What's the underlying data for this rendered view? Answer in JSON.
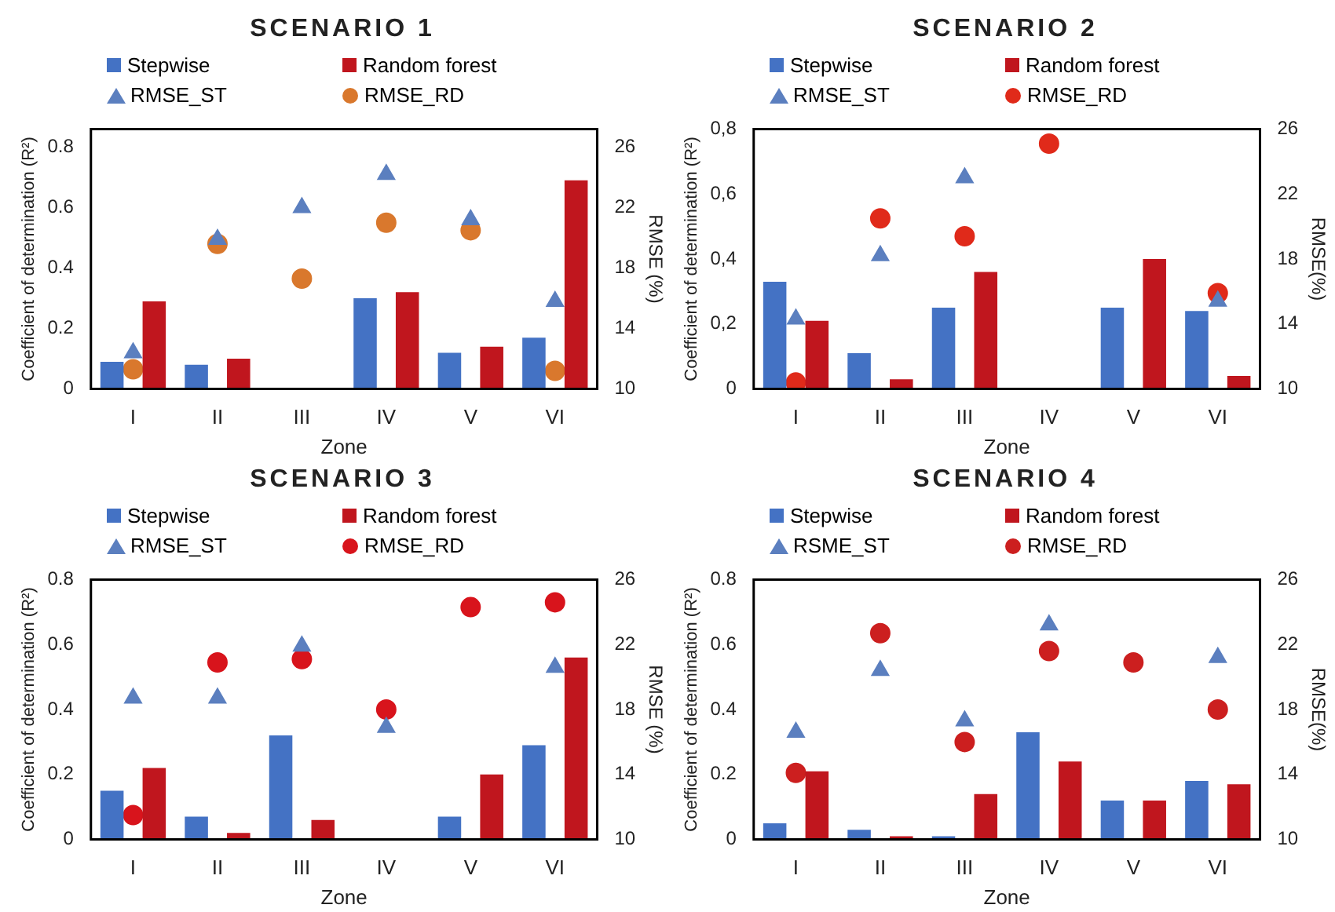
{
  "chart_data": [
    {
      "type": "bar",
      "title": "SCENARIO 1",
      "xlabel": "Zone",
      "ylabel": "Coefficient of determination (R²)",
      "y2label": "RMSE (%)",
      "categories": [
        "I",
        "II",
        "III",
        "IV",
        "V",
        "VI"
      ],
      "legend": "top",
      "grid": false,
      "ylim": [
        0,
        0.86
      ],
      "yticks": [
        0,
        0.2,
        0.4,
        0.6,
        0.8
      ],
      "y2lim": [
        10,
        27.2
      ],
      "y2ticks": [
        10,
        14,
        18,
        22,
        26
      ],
      "series": [
        {
          "name": "Stepwise",
          "type": "bar",
          "color": "#4472c4",
          "values": [
            0.09,
            0.08,
            0,
            0.3,
            0.12,
            0.17
          ]
        },
        {
          "name": "Random forest",
          "type": "bar",
          "color": "#c0161e",
          "values": [
            0.29,
            0.1,
            0,
            0.32,
            0.14,
            0.69
          ]
        },
        {
          "name": "RMSE_ST",
          "type": "scatter",
          "marker": "triangle",
          "axis": "y2",
          "color": "#5b7fbf",
          "values": [
            12.4,
            19.9,
            22,
            24.2,
            21.2,
            15.8
          ]
        },
        {
          "name": "RMSE_RD",
          "type": "scatter",
          "marker": "circle",
          "axis": "y2",
          "color": "#d9782d",
          "values": [
            11.3,
            19.6,
            17.3,
            21,
            20.5,
            11.2
          ]
        }
      ]
    },
    {
      "type": "bar",
      "title": "SCENARIO 2",
      "xlabel": "Zone",
      "ylabel": "Coefficient of determination (R²)",
      "y2label": "RMSE(%)",
      "categories": [
        "I",
        "II",
        "III",
        "IV",
        "V",
        "VI"
      ],
      "legend": "top",
      "grid": false,
      "ylim": [
        0,
        0.8
      ],
      "yticks": [
        0,
        {
          "value": 0.2,
          "label": "0,2"
        },
        {
          "value": 0.4,
          "label": "0,4"
        },
        {
          "value": 0.6,
          "label": "0,6"
        },
        {
          "value": 0.8,
          "label": "0,8"
        }
      ],
      "y2lim": [
        10,
        26
      ],
      "y2ticks": [
        10,
        14,
        18,
        22,
        26
      ],
      "series": [
        {
          "name": "Stepwise",
          "type": "bar",
          "color": "#4472c4",
          "values": [
            0.33,
            0.11,
            0.25,
            0,
            0.25,
            0.24
          ]
        },
        {
          "name": "Random forest",
          "type": "bar",
          "color": "#c0161e",
          "values": [
            0.21,
            0.03,
            0.36,
            0,
            0.4,
            0.04
          ]
        },
        {
          "name": "RMSE_ST",
          "type": "scatter",
          "marker": "triangle",
          "axis": "y2",
          "color": "#5b7fbf",
          "values": [
            14.3,
            18.2,
            23,
            null,
            null,
            15.4
          ]
        },
        {
          "name": "RMSE_RD",
          "type": "scatter",
          "marker": "circle",
          "axis": "y2",
          "color": "#e02a1a",
          "values": [
            10.4,
            20.5,
            19.4,
            25.1,
            null,
            15.9
          ]
        }
      ]
    },
    {
      "type": "bar",
      "title": "SCENARIO 3",
      "xlabel": "Zone",
      "ylabel": "Coefficient of determination (R²)",
      "y2label": "RMSE (%)",
      "categories": [
        "I",
        "II",
        "III",
        "IV",
        "V",
        "VI"
      ],
      "legend": "top",
      "grid": false,
      "ylim": [
        0,
        0.8
      ],
      "yticks": [
        0,
        0.2,
        0.4,
        0.6,
        0.8
      ],
      "y2lim": [
        10,
        26
      ],
      "y2ticks": [
        10,
        14,
        18,
        22,
        26
      ],
      "series": [
        {
          "name": "Stepwise",
          "type": "bar",
          "color": "#4472c4",
          "values": [
            0.15,
            0.07,
            0.32,
            0,
            0.07,
            0.29
          ]
        },
        {
          "name": "Random forest",
          "type": "bar",
          "color": "#c0161e",
          "values": [
            0.22,
            0.02,
            0.06,
            0,
            0.2,
            0.56
          ]
        },
        {
          "name": "RMSE_ST",
          "type": "scatter",
          "marker": "triangle",
          "axis": "y2",
          "color": "#5b7fbf",
          "values": [
            18.7,
            18.7,
            21.9,
            16.9,
            null,
            20.6
          ]
        },
        {
          "name": "RMSE_RD",
          "type": "scatter",
          "marker": "circle",
          "axis": "y2",
          "color": "#d8141c",
          "values": [
            11.5,
            20.9,
            21.1,
            18,
            24.3,
            24.6
          ]
        }
      ]
    },
    {
      "type": "bar",
      "title": "SCENARIO 4",
      "xlabel": "Zone",
      "ylabel": "Coefficient of determination (R²)",
      "y2label": "RMSE(%)",
      "categories": [
        "I",
        "II",
        "III",
        "IV",
        "V",
        "VI"
      ],
      "legend": "top",
      "grid": false,
      "ylim": [
        0,
        0.8
      ],
      "yticks": [
        0,
        0.2,
        0.4,
        0.6,
        0.8
      ],
      "y2lim": [
        10,
        26
      ],
      "y2ticks": [
        10,
        14,
        18,
        22,
        26
      ],
      "series": [
        {
          "name": "Stepwise",
          "type": "bar",
          "color": "#4472c4",
          "values": [
            0.05,
            0.03,
            0.01,
            0.33,
            0.12,
            0.18
          ]
        },
        {
          "name": "Random forest",
          "type": "bar",
          "color": "#c0161e",
          "values": [
            0.21,
            0.01,
            0.14,
            0.24,
            0.12,
            0.17
          ]
        },
        {
          "name": "RSME_ST",
          "type": "scatter",
          "marker": "triangle",
          "axis": "y2",
          "color": "#5b7fbf",
          "values": [
            16.6,
            20.4,
            17.3,
            23.2,
            null,
            21.2
          ]
        },
        {
          "name": "RMSE_RD",
          "type": "scatter",
          "marker": "circle",
          "axis": "y2",
          "color": "#cc1f1f",
          "values": [
            14.1,
            22.7,
            16,
            21.6,
            20.9,
            18
          ]
        }
      ]
    }
  ]
}
